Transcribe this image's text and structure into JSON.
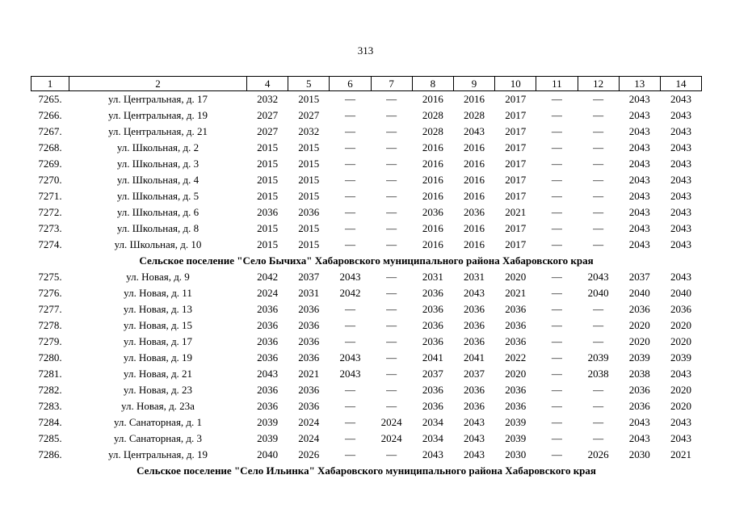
{
  "page": {
    "number": "313"
  },
  "table": {
    "headers": [
      "1",
      "2",
      "4",
      "5",
      "6",
      "7",
      "8",
      "9",
      "10",
      "11",
      "12",
      "13",
      "14"
    ],
    "sections": [
      {
        "header": null,
        "rows": [
          {
            "num": "7265.",
            "address": "ул. Центральная, д. 17",
            "values": [
              "2032",
              "2015",
              "—",
              "—",
              "2016",
              "2016",
              "2017",
              "—",
              "—",
              "2043",
              "2043"
            ]
          },
          {
            "num": "7266.",
            "address": "ул. Центральная, д. 19",
            "values": [
              "2027",
              "2027",
              "—",
              "—",
              "2028",
              "2028",
              "2017",
              "—",
              "—",
              "2043",
              "2043"
            ]
          },
          {
            "num": "7267.",
            "address": "ул. Центральная, д. 21",
            "values": [
              "2027",
              "2032",
              "—",
              "—",
              "2028",
              "2043",
              "2017",
              "—",
              "—",
              "2043",
              "2043"
            ]
          },
          {
            "num": "7268.",
            "address": "ул. Школьная, д. 2",
            "values": [
              "2015",
              "2015",
              "—",
              "—",
              "2016",
              "2016",
              "2017",
              "—",
              "—",
              "2043",
              "2043"
            ]
          },
          {
            "num": "7269.",
            "address": "ул. Школьная, д. 3",
            "values": [
              "2015",
              "2015",
              "—",
              "—",
              "2016",
              "2016",
              "2017",
              "—",
              "—",
              "2043",
              "2043"
            ]
          },
          {
            "num": "7270.",
            "address": "ул. Школьная, д. 4",
            "values": [
              "2015",
              "2015",
              "—",
              "—",
              "2016",
              "2016",
              "2017",
              "—",
              "—",
              "2043",
              "2043"
            ]
          },
          {
            "num": "7271.",
            "address": "ул. Школьная, д. 5",
            "values": [
              "2015",
              "2015",
              "—",
              "—",
              "2016",
              "2016",
              "2017",
              "—",
              "—",
              "2043",
              "2043"
            ]
          },
          {
            "num": "7272.",
            "address": "ул. Школьная, д. 6",
            "values": [
              "2036",
              "2036",
              "—",
              "—",
              "2036",
              "2036",
              "2021",
              "—",
              "—",
              "2043",
              "2043"
            ]
          },
          {
            "num": "7273.",
            "address": "ул. Школьная, д. 8",
            "values": [
              "2015",
              "2015",
              "—",
              "—",
              "2016",
              "2016",
              "2017",
              "—",
              "—",
              "2043",
              "2043"
            ]
          },
          {
            "num": "7274.",
            "address": "ул. Школьная, д. 10",
            "values": [
              "2015",
              "2015",
              "—",
              "—",
              "2016",
              "2016",
              "2017",
              "—",
              "—",
              "2043",
              "2043"
            ]
          }
        ]
      },
      {
        "header": "Сельское поселение \"Село Бычиха\" Хабаровского муниципального района Хабаровского края",
        "rows": [
          {
            "num": "7275.",
            "address": "ул. Новая, д. 9",
            "values": [
              "2042",
              "2037",
              "2043",
              "—",
              "2031",
              "2031",
              "2020",
              "—",
              "2043",
              "2037",
              "2043"
            ]
          },
          {
            "num": "7276.",
            "address": "ул. Новая, д. 11",
            "values": [
              "2024",
              "2031",
              "2042",
              "—",
              "2036",
              "2043",
              "2021",
              "—",
              "2040",
              "2040",
              "2040"
            ]
          },
          {
            "num": "7277.",
            "address": "ул. Новая, д. 13",
            "values": [
              "2036",
              "2036",
              "—",
              "—",
              "2036",
              "2036",
              "2036",
              "—",
              "—",
              "2036",
              "2036"
            ]
          },
          {
            "num": "7278.",
            "address": "ул. Новая, д. 15",
            "values": [
              "2036",
              "2036",
              "—",
              "—",
              "2036",
              "2036",
              "2036",
              "—",
              "—",
              "2020",
              "2020"
            ]
          },
          {
            "num": "7279.",
            "address": "ул. Новая, д. 17",
            "values": [
              "2036",
              "2036",
              "—",
              "—",
              "2036",
              "2036",
              "2036",
              "—",
              "—",
              "2020",
              "2020"
            ]
          },
          {
            "num": "7280.",
            "address": "ул. Новая, д. 19",
            "values": [
              "2036",
              "2036",
              "2043",
              "—",
              "2041",
              "2041",
              "2022",
              "—",
              "2039",
              "2039",
              "2039"
            ]
          },
          {
            "num": "7281.",
            "address": "ул. Новая, д. 21",
            "values": [
              "2043",
              "2021",
              "2043",
              "—",
              "2037",
              "2037",
              "2020",
              "—",
              "2038",
              "2038",
              "2043"
            ]
          },
          {
            "num": "7282.",
            "address": "ул. Новая, д. 23",
            "values": [
              "2036",
              "2036",
              "—",
              "—",
              "2036",
              "2036",
              "2036",
              "—",
              "—",
              "2036",
              "2020"
            ]
          },
          {
            "num": "7283.",
            "address": "ул. Новая, д. 23а",
            "values": [
              "2036",
              "2036",
              "—",
              "—",
              "2036",
              "2036",
              "2036",
              "—",
              "—",
              "2036",
              "2020"
            ]
          },
          {
            "num": "7284.",
            "address": "ул. Санаторная, д. 1",
            "values": [
              "2039",
              "2024",
              "—",
              "2024",
              "2034",
              "2043",
              "2039",
              "—",
              "—",
              "2043",
              "2043"
            ]
          },
          {
            "num": "7285.",
            "address": "ул. Санаторная, д. 3",
            "values": [
              "2039",
              "2024",
              "—",
              "2024",
              "2034",
              "2043",
              "2039",
              "—",
              "—",
              "2043",
              "2043"
            ]
          },
          {
            "num": "7286.",
            "address": "ул. Центральная, д. 19",
            "values": [
              "2040",
              "2026",
              "—",
              "—",
              "2043",
              "2043",
              "2030",
              "—",
              "2026",
              "2030",
              "2021"
            ]
          }
        ]
      },
      {
        "header": "Сельское поселение \"Село Ильинка\" Хабаровского муниципального района Хабаровского края",
        "rows": []
      }
    ]
  }
}
